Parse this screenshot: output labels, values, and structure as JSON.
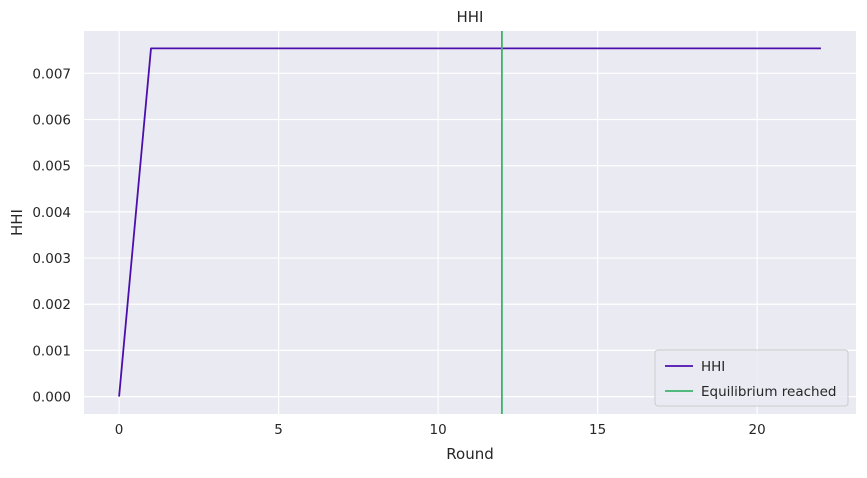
{
  "chart_data": {
    "type": "line",
    "title": "HHI",
    "xlabel": "Round",
    "ylabel": "HHI",
    "xlim": [
      -1.1,
      23.1
    ],
    "ylim": [
      -0.000377,
      0.007916
    ],
    "xticks": [
      0,
      5,
      10,
      15,
      20
    ],
    "xtick_labels": [
      "0",
      "5",
      "10",
      "15",
      "20"
    ],
    "yticks": [
      0.0,
      0.001,
      0.002,
      0.003,
      0.004,
      0.005,
      0.006,
      0.007
    ],
    "ytick_labels": [
      "0.000",
      "0.001",
      "0.002",
      "0.003",
      "0.004",
      "0.005",
      "0.006",
      "0.007"
    ],
    "grid": true,
    "legend_position": "lower-right",
    "series": [
      {
        "name": "HHI",
        "color": "#4b0fae",
        "x": [
          0,
          1,
          2,
          3,
          4,
          5,
          6,
          7,
          8,
          9,
          10,
          11,
          12,
          13,
          14,
          15,
          16,
          17,
          18,
          19,
          20,
          21,
          22
        ],
        "y": [
          0.0,
          0.00754,
          0.00754,
          0.00754,
          0.00754,
          0.00754,
          0.00754,
          0.00754,
          0.00754,
          0.00754,
          0.00754,
          0.00754,
          0.00754,
          0.00754,
          0.00754,
          0.00754,
          0.00754,
          0.00754,
          0.00754,
          0.00754,
          0.00754,
          0.00754,
          0.00754
        ]
      }
    ],
    "vlines": [
      {
        "name": "Equilibrium reached",
        "x": 12,
        "color": "#3cb36b"
      }
    ],
    "colors": {
      "plot_background": "#eaeaf2",
      "grid": "#ffffff"
    }
  }
}
